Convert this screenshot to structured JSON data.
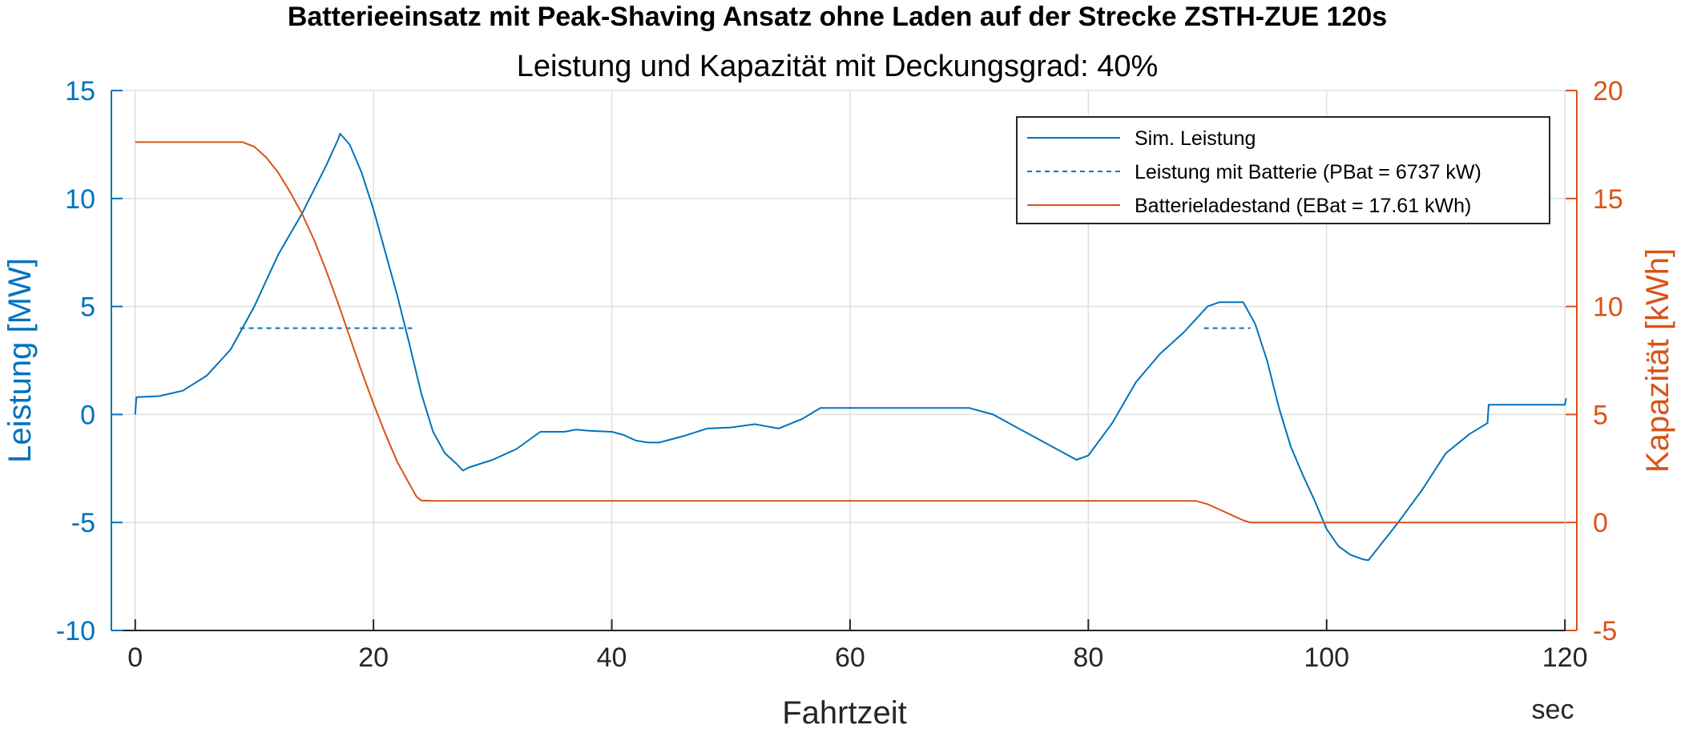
{
  "chart_data": {
    "type": "line",
    "title": "Batterieeinsatz mit Peak-Shaving Ansatz ohne Laden auf der Strecke ZSTH-ZUE 120s",
    "subtitle": "Leistung und Kapazität mit Deckungsgrad: 40%",
    "xlabel": "Fahrtzeit",
    "xunit": "sec",
    "ylabel_left": "Leistung [MW]",
    "ylabel_right": "Kapazität [kWh]",
    "xlim": [
      -2,
      121
    ],
    "ylim_left": [
      -10,
      15
    ],
    "ylim_right": [
      -5,
      20
    ],
    "xticks": [
      0,
      20,
      40,
      60,
      80,
      100,
      120
    ],
    "yticks_left": [
      -10,
      -5,
      0,
      5,
      10,
      15
    ],
    "yticks_right": [
      -5,
      0,
      5,
      10,
      15,
      20
    ],
    "grid": true,
    "legend_position": "top-right",
    "colors": {
      "left_axis": "#0072BD",
      "right_axis": "#D95319",
      "axis": "#262626",
      "grid": "#DFDFDF"
    },
    "series": [
      {
        "name": "Sim. Leistung",
        "axis": "left",
        "style": "solid",
        "color": "#0072BD",
        "points": [
          [
            0,
            0
          ],
          [
            0.1,
            0.8
          ],
          [
            2,
            0.85
          ],
          [
            4,
            1.1
          ],
          [
            6,
            1.8
          ],
          [
            8,
            3.0
          ],
          [
            10,
            5.0
          ],
          [
            11,
            6.2
          ],
          [
            12,
            7.4
          ],
          [
            14,
            9.3
          ],
          [
            16,
            11.5
          ],
          [
            17,
            12.7
          ],
          [
            17.2,
            13.0
          ],
          [
            18,
            12.5
          ],
          [
            19,
            11.2
          ],
          [
            20,
            9.5
          ],
          [
            21,
            7.5
          ],
          [
            22,
            5.5
          ],
          [
            23,
            3.3
          ],
          [
            24,
            1.0
          ],
          [
            25,
            -0.8
          ],
          [
            26,
            -1.8
          ],
          [
            27,
            -2.3
          ],
          [
            27.5,
            -2.6
          ],
          [
            28,
            -2.45
          ],
          [
            30,
            -2.1
          ],
          [
            32,
            -1.6
          ],
          [
            34,
            -0.8
          ],
          [
            36,
            -0.8
          ],
          [
            37,
            -0.7
          ],
          [
            38,
            -0.75
          ],
          [
            40,
            -0.8
          ],
          [
            41,
            -0.95
          ],
          [
            42,
            -1.2
          ],
          [
            43,
            -1.3
          ],
          [
            44,
            -1.3
          ],
          [
            46,
            -1.0
          ],
          [
            48,
            -0.65
          ],
          [
            50,
            -0.6
          ],
          [
            52,
            -0.45
          ],
          [
            53,
            -0.55
          ],
          [
            54,
            -0.65
          ],
          [
            56,
            -0.2
          ],
          [
            57.5,
            0.3
          ],
          [
            60,
            0.3
          ],
          [
            65,
            0.3
          ],
          [
            70,
            0.3
          ],
          [
            72,
            0.0
          ],
          [
            74,
            -0.6
          ],
          [
            76,
            -1.2
          ],
          [
            78,
            -1.8
          ],
          [
            79,
            -2.1
          ],
          [
            80,
            -1.9
          ],
          [
            82,
            -0.4
          ],
          [
            84,
            1.5
          ],
          [
            86,
            2.8
          ],
          [
            88,
            3.8
          ],
          [
            89,
            4.4
          ],
          [
            90,
            5.0
          ],
          [
            91,
            5.2
          ],
          [
            93,
            5.2
          ],
          [
            94,
            4.2
          ],
          [
            95,
            2.5
          ],
          [
            96,
            0.3
          ],
          [
            97,
            -1.5
          ],
          [
            98,
            -2.8
          ],
          [
            99,
            -4.0
          ],
          [
            100,
            -5.3
          ],
          [
            101,
            -6.1
          ],
          [
            102,
            -6.5
          ],
          [
            103,
            -6.7
          ],
          [
            103.5,
            -6.75
          ],
          [
            106,
            -5.0
          ],
          [
            108,
            -3.5
          ],
          [
            110,
            -1.8
          ],
          [
            112,
            -0.9
          ],
          [
            113.5,
            -0.4
          ],
          [
            113.6,
            0.45
          ],
          [
            115,
            0.45
          ],
          [
            120,
            0.45
          ],
          [
            120.1,
            0.75
          ]
        ]
      },
      {
        "name": "Leistung mit Batterie (PBat = 6737 kW)",
        "axis": "left",
        "style": "dashed",
        "color": "#0072BD",
        "segments": [
          [
            [
              8.8,
              4.0
            ],
            [
              23.5,
              4.0
            ]
          ],
          [
            [
              89.7,
              4.0
            ],
            [
              93.6,
              4.0
            ]
          ]
        ]
      },
      {
        "name": "Batterieladestand (EBat = 17.61 kWh)",
        "axis": "right",
        "style": "solid",
        "color": "#D95319",
        "points": [
          [
            0,
            17.61
          ],
          [
            9,
            17.61
          ],
          [
            10,
            17.4
          ],
          [
            11,
            16.9
          ],
          [
            12,
            16.2
          ],
          [
            13,
            15.3
          ],
          [
            14,
            14.3
          ],
          [
            15,
            13.1
          ],
          [
            16,
            11.7
          ],
          [
            17,
            10.2
          ],
          [
            18,
            8.6
          ],
          [
            19,
            7.0
          ],
          [
            20,
            5.5
          ],
          [
            21,
            4.1
          ],
          [
            22,
            2.8
          ],
          [
            23,
            1.8
          ],
          [
            23.6,
            1.2
          ],
          [
            24,
            1.02
          ],
          [
            25,
            1.0
          ],
          [
            30,
            1.0
          ],
          [
            50,
            1.0
          ],
          [
            70,
            1.0
          ],
          [
            89,
            1.0
          ],
          [
            90,
            0.85
          ],
          [
            91,
            0.6
          ],
          [
            92,
            0.35
          ],
          [
            93,
            0.1
          ],
          [
            93.6,
            0.0
          ],
          [
            100,
            0.0
          ],
          [
            110,
            0.0
          ],
          [
            120,
            0.0
          ]
        ]
      }
    ]
  }
}
